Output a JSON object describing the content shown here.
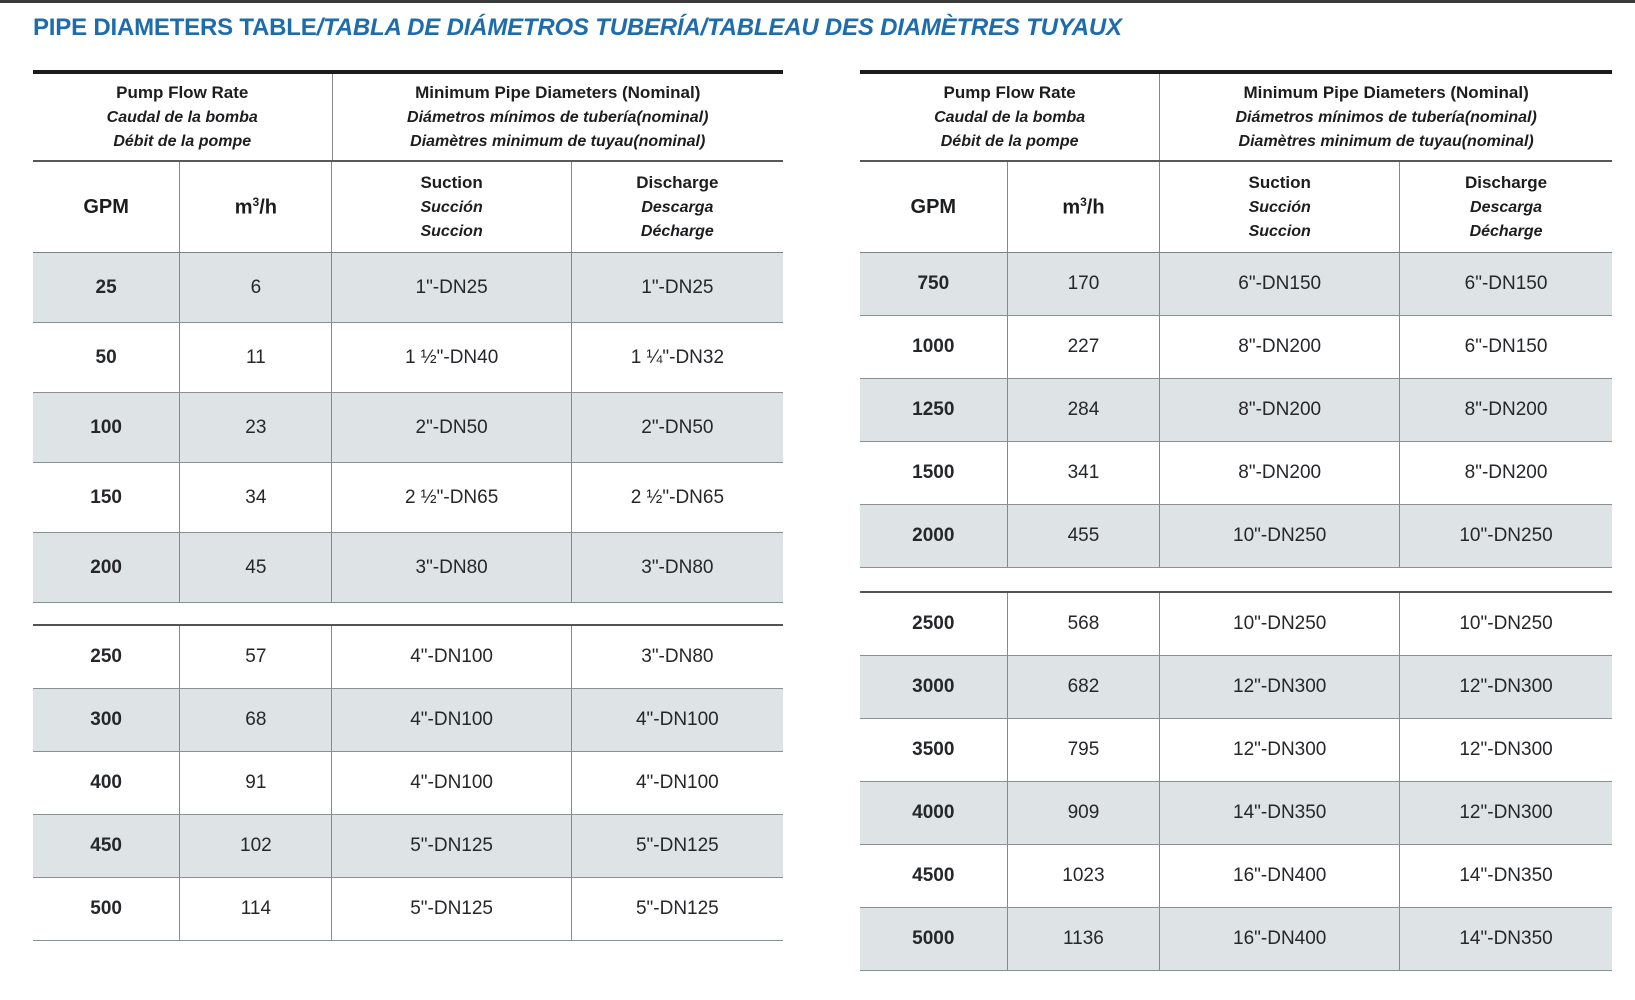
{
  "page": {
    "title_main": "PIPE DIAMETERS TABLE",
    "title_rest": "/TABLA DE DIÁMETROS TUBERÍA/TABLEAU DES DIAMÈTRES TUYAUX"
  },
  "colors": {
    "title_blue": "#1e6cab",
    "row_shade": "#dee3e6",
    "border_dark": "#1b1b1b",
    "border_gray": "#8b9093",
    "scan_edge": "#3a3a3a"
  },
  "header": {
    "flow_group": [
      "Pump Flow Rate",
      "Caudal de la bomba",
      "Débit de la pompe"
    ],
    "diameter_group": [
      "Minimum Pipe Diameters (Nominal)",
      "Diámetros mínimos de tubería(nominal)",
      "Diamètres minimum de tuyau(nominal)"
    ],
    "gpm": "GPM",
    "unit_prefix": "m",
    "unit_sup": "3",
    "unit_slash_h": "/h",
    "suction": [
      "Suction",
      "Succión",
      "Succion"
    ],
    "discharge": [
      "Discharge",
      "Descarga",
      "Décharge"
    ]
  },
  "tables": [
    {
      "name": "left",
      "blocks": [
        {
          "rows": [
            {
              "gpm": "25",
              "m3h": "6",
              "suction": "1\"-DN25",
              "discharge": "1\"-DN25",
              "shaded": true
            },
            {
              "gpm": "50",
              "m3h": "11",
              "suction": "1 ½\"-DN40",
              "discharge": "1 ¼\"-DN32",
              "shaded": false
            },
            {
              "gpm": "100",
              "m3h": "23",
              "suction": "2\"-DN50",
              "discharge": "2\"-DN50",
              "shaded": true
            },
            {
              "gpm": "150",
              "m3h": "34",
              "suction": "2 ½\"-DN65",
              "discharge": "2 ½\"-DN65",
              "shaded": false
            },
            {
              "gpm": "200",
              "m3h": "45",
              "suction": "3\"-DN80",
              "discharge": "3\"-DN80",
              "shaded": true
            }
          ]
        },
        {
          "rows": [
            {
              "gpm": "250",
              "m3h": "57",
              "suction": "4\"-DN100",
              "discharge": "3\"-DN80",
              "shaded": false
            },
            {
              "gpm": "300",
              "m3h": "68",
              "suction": "4\"-DN100",
              "discharge": "4\"-DN100",
              "shaded": true
            },
            {
              "gpm": "400",
              "m3h": "91",
              "suction": "4\"-DN100",
              "discharge": "4\"-DN100",
              "shaded": false
            },
            {
              "gpm": "450",
              "m3h": "102",
              "suction": "5\"-DN125",
              "discharge": "5\"-DN125",
              "shaded": true
            },
            {
              "gpm": "500",
              "m3h": "114",
              "suction": "5\"-DN125",
              "discharge": "5\"-DN125",
              "shaded": false
            }
          ]
        }
      ]
    },
    {
      "name": "right",
      "blocks": [
        {
          "rows": [
            {
              "gpm": "750",
              "m3h": "170",
              "suction": "6\"-DN150",
              "discharge": "6\"-DN150",
              "shaded": true
            },
            {
              "gpm": "1000",
              "m3h": "227",
              "suction": "8\"-DN200",
              "discharge": "6\"-DN150",
              "shaded": false
            },
            {
              "gpm": "1250",
              "m3h": "284",
              "suction": "8\"-DN200",
              "discharge": "8\"-DN200",
              "shaded": true
            },
            {
              "gpm": "1500",
              "m3h": "341",
              "suction": "8\"-DN200",
              "discharge": "8\"-DN200",
              "shaded": false
            },
            {
              "gpm": "2000",
              "m3h": "455",
              "suction": "10\"-DN250",
              "discharge": "10\"-DN250",
              "shaded": true
            }
          ]
        },
        {
          "rows": [
            {
              "gpm": "2500",
              "m3h": "568",
              "suction": "10\"-DN250",
              "discharge": "10\"-DN250",
              "shaded": false
            },
            {
              "gpm": "3000",
              "m3h": "682",
              "suction": "12\"-DN300",
              "discharge": "12\"-DN300",
              "shaded": true
            },
            {
              "gpm": "3500",
              "m3h": "795",
              "suction": "12\"-DN300",
              "discharge": "12\"-DN300",
              "shaded": false
            },
            {
              "gpm": "4000",
              "m3h": "909",
              "suction": "14\"-DN350",
              "discharge": "12\"-DN300",
              "shaded": true
            },
            {
              "gpm": "4500",
              "m3h": "1023",
              "suction": "16\"-DN400",
              "discharge": "14\"-DN350",
              "shaded": false
            },
            {
              "gpm": "5000",
              "m3h": "1136",
              "suction": "16\"-DN400",
              "discharge": "14\"-DN350",
              "shaded": true
            }
          ]
        }
      ]
    }
  ]
}
